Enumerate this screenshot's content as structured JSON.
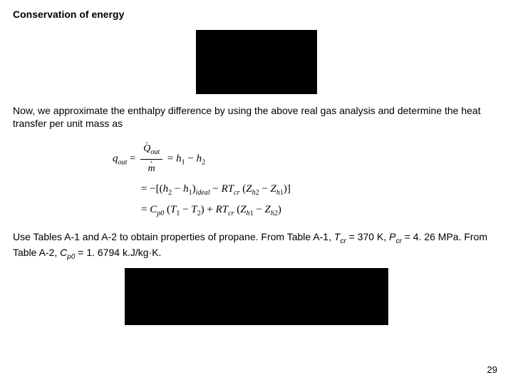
{
  "title": "Conservation of energy",
  "para1": "Now, we approximate the enthalpy difference by using the above real gas analysis and determine the heat transfer per unit mass as",
  "eq": {
    "qout": "q",
    "qout_sub": "out",
    "Qout": "Q",
    "Qout_sub": "out",
    "mdot": "m",
    "h1": "h",
    "s1": "1",
    "h2": "h",
    "s2": "2",
    "ideal": "ideal",
    "R": "R",
    "T": "T",
    "cr": "cr",
    "Z": "Z",
    "Zh2": "h",
    "Zh1": "h",
    "z2": "2",
    "z1": "1",
    "Cp0": "C",
    "Cp0sub": "p0",
    "T1": "T",
    "T2": "T"
  },
  "para2_a": "Use Tables A-1 and A-2 to obtain properties of propane.   From Table A-1, ",
  "para2_b": " = 370 K, ",
  "para2_c": " = 4. 26 MPa.  From Table A-2, ",
  "para2_d": " = 1. 6794 k.J/kg·K.",
  "Tcr_sym": "T",
  "Tcr_sub": "cr",
  "Pcr_sym": "P",
  "Pcr_sub": "cr",
  "Cp0_sym": "C",
  "Cp0_sub": "p0",
  "pagenum": "29",
  "colors": {
    "bg": "#ffffff",
    "text": "#000000",
    "box": "#000000"
  }
}
